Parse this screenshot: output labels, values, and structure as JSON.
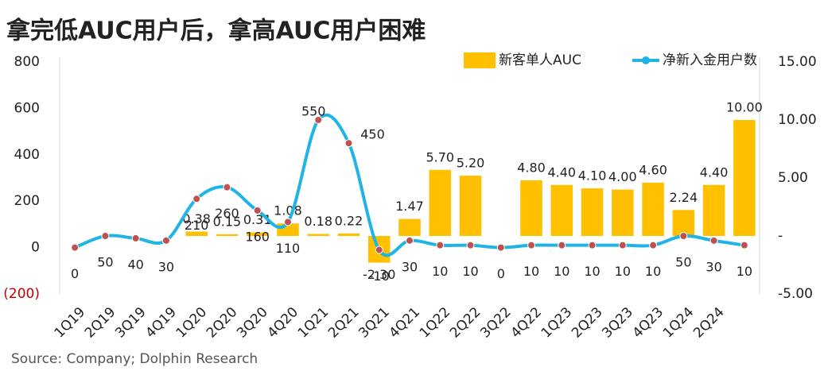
{
  "chart_data": {
    "type": "bar-line",
    "title": "拿完低AUC用户后，拿高AUC用户困难",
    "source": "Source: Company; Dolphin Research",
    "categories": [
      "1Q19",
      "2Q19",
      "3Q19",
      "4Q19",
      "1Q20",
      "2Q20",
      "3Q20",
      "4Q20",
      "1Q21",
      "2Q21",
      "3Q21",
      "4Q21",
      "1Q22",
      "2Q22",
      "3Q22",
      "4Q22",
      "1Q23",
      "2Q23",
      "3Q23",
      "4Q23",
      "1Q24",
      "2Q24",
      null
    ],
    "series": [
      {
        "name": "新客单人AUC",
        "type": "bar",
        "axis": "y2",
        "color": "#ffc000",
        "values": [
          null,
          null,
          null,
          null,
          0.38,
          0.15,
          0.31,
          1.08,
          0.18,
          0.22,
          -2.3,
          1.47,
          5.7,
          5.2,
          null,
          4.8,
          4.4,
          4.1,
          4.0,
          4.6,
          2.24,
          4.4,
          10.0
        ],
        "value_labels": [
          null,
          null,
          null,
          null,
          "0.38",
          "0.15",
          "0.31",
          "1.08",
          "0.18",
          "0.22",
          "-2.30",
          "1.47",
          "5.70",
          "5.20",
          null,
          "4.80",
          "4.40",
          "4.10",
          "4.00",
          "4.60",
          "2.24",
          "4.40",
          "10.00"
        ]
      },
      {
        "name": "净新入金用户数",
        "type": "line",
        "axis": "y",
        "color": "#1eb4e6",
        "marker_color": "#c0504d",
        "values": [
          0,
          50,
          40,
          30,
          210,
          260,
          160,
          110,
          550,
          450,
          -10,
          30,
          10,
          10,
          0,
          10,
          10,
          10,
          10,
          10,
          50,
          30,
          10
        ]
      }
    ],
    "ylim": [
      -200,
      800
    ],
    "yticks": [
      {
        "value": -200,
        "label": "(200)"
      },
      0,
      200,
      400,
      600,
      800
    ],
    "y2lim": [
      -5,
      15
    ],
    "y2ticks": [
      {
        "value": -5,
        "label": "-5.00"
      },
      {
        "value": 0,
        "label": "-"
      },
      {
        "value": 5,
        "label": "5.00"
      },
      {
        "value": 10,
        "label": "10.00"
      },
      {
        "value": 15,
        "label": "15.00"
      }
    ],
    "legend": "top-right",
    "grid": false
  }
}
